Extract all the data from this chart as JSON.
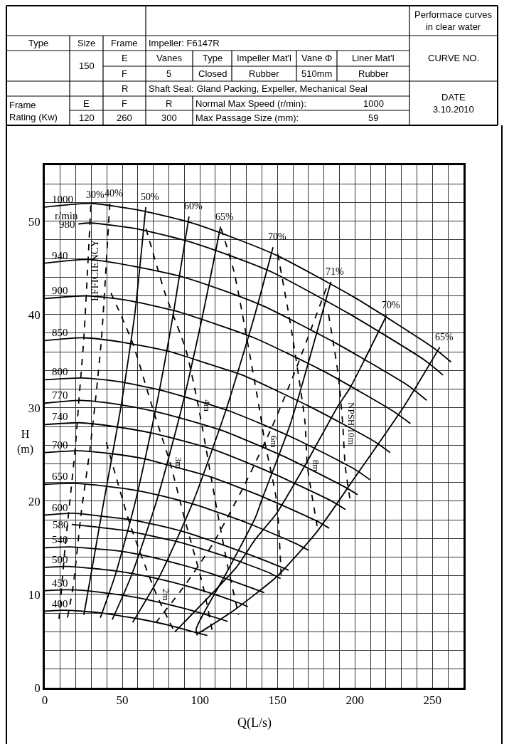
{
  "chart_data": {
    "type": "line",
    "xlabel": "Q(L/s)",
    "ylabel": "H\n(m)",
    "xlim": [
      0,
      270
    ],
    "ylim": [
      0,
      56
    ],
    "xticks": [
      0,
      {
        "value": 10,
        "label": null
      },
      {
        "value": 20,
        "label": null
      },
      {
        "value": 30,
        "label": null
      },
      {
        "value": 40,
        "label": null
      },
      50,
      {
        "value": 60,
        "label": null
      },
      {
        "value": 70,
        "label": null
      },
      {
        "value": 80,
        "label": null
      },
      {
        "value": 90,
        "label": null
      },
      100,
      {
        "value": 110,
        "label": null
      },
      {
        "value": 120,
        "label": null
      },
      {
        "value": 130,
        "label": null
      },
      {
        "value": 140,
        "label": null
      },
      150,
      {
        "value": 160,
        "label": null
      },
      {
        "value": 170,
        "label": null
      },
      {
        "value": 180,
        "label": null
      },
      {
        "value": 190,
        "label": null
      },
      200,
      {
        "value": 210,
        "label": null
      },
      {
        "value": 220,
        "label": null
      },
      {
        "value": 230,
        "label": null
      },
      {
        "value": 240,
        "label": null
      },
      250,
      {
        "value": 260,
        "label": null
      },
      {
        "value": 270,
        "label": null
      }
    ],
    "yticks": [
      0,
      {
        "value": 2,
        "label": null
      },
      {
        "value": 4,
        "label": null
      },
      {
        "value": 6,
        "label": null
      },
      {
        "value": 8,
        "label": null
      },
      10,
      {
        "value": 12,
        "label": null
      },
      {
        "value": 14,
        "label": null
      },
      {
        "value": 16,
        "label": null
      },
      {
        "value": 18,
        "label": null
      },
      20,
      {
        "value": 22,
        "label": null
      },
      {
        "value": 24,
        "label": null
      },
      {
        "value": 26,
        "label": null
      },
      {
        "value": 28,
        "label": null
      },
      30,
      {
        "value": 32,
        "label": null
      },
      {
        "value": 34,
        "label": null
      },
      {
        "value": 36,
        "label": null
      },
      {
        "value": 38,
        "label": null
      },
      40,
      {
        "value": 42,
        "label": null
      },
      {
        "value": 44,
        "label": null
      },
      {
        "value": 46,
        "label": null
      },
      {
        "value": 48,
        "label": null
      },
      50,
      {
        "value": 52,
        "label": null
      },
      {
        "value": 54,
        "label": null
      },
      {
        "value": 56,
        "label": null
      }
    ],
    "grid": true,
    "legend": false,
    "marker": "none",
    "line_style": "solid",
    "annotations": [
      "Performace curves\nin clear water",
      "Type",
      "Size",
      "Frame",
      "Impeller: F6147R",
      "E",
      "Vanes",
      "Type",
      "Impeller Mat'l",
      "Vane Φ",
      "Liner Mat'l",
      "150",
      "F",
      "5",
      "Closed",
      "Rubber",
      "510mm",
      "Rubber",
      "CURVE NO.",
      "R",
      "Shaft Seal: Gland Packing, Expeller, Mechanical Seal",
      "DATE\n3.10.2010",
      "Frame\nRating (Kw)",
      "E",
      "F",
      "R",
      "Normal Max Speed (r/min):",
      "1000",
      "120",
      "260",
      "300",
      "Max Passage Size (mm):",
      "59",
      "r/min",
      "EFFICIENCY"
    ],
    "series": [
      {
        "name": "1000",
        "color": "#000000",
        "x": [
          0,
          30,
          60,
          93,
          122,
          150,
          200,
          250,
          262
        ],
        "values": [
          51.5,
          51.9,
          51.2,
          49.9,
          48.2,
          46.3,
          41.8,
          36.5,
          34.9
        ]
      },
      {
        "name": "980",
        "color": "#000000",
        "x": [
          21.6,
          29.4,
          58.8,
          91.1,
          119.6,
          147.0,
          196.0,
          245.0,
          256.8
        ],
        "values": [
          49.7,
          49.8,
          49.2,
          47.9,
          46.3,
          44.5,
          40.1,
          35.1,
          33.5
        ]
      },
      {
        "name": "940",
        "color": "#000000",
        "x": [
          0,
          28.2,
          56.4,
          87.4,
          114.7,
          141.0,
          188.0,
          235.0,
          246.3
        ],
        "values": [
          45.5,
          45.9,
          45.2,
          44.1,
          42.6,
          40.9,
          36.9,
          32.3,
          30.8
        ]
      },
      {
        "name": "900",
        "color": "#000000",
        "x": [
          0,
          27,
          54,
          83.7,
          109.8,
          135,
          180,
          225,
          235.8
        ],
        "values": [
          41.7,
          42.0,
          41.5,
          40.4,
          39.0,
          37.5,
          33.9,
          29.6,
          28.3
        ]
      },
      {
        "name": "850",
        "color": "#000000",
        "x": [
          0,
          25.5,
          51,
          79.1,
          103.7,
          127.5,
          170,
          212.5,
          222.7
        ],
        "values": [
          37.2,
          37.5,
          37.0,
          36.1,
          34.8,
          33.5,
          30.2,
          26.4,
          25.2
        ]
      },
      {
        "name": "800",
        "color": "#000000",
        "x": [
          0,
          24,
          48,
          74.4,
          97.6,
          120,
          160,
          200,
          209.6
        ],
        "values": [
          33.0,
          33.2,
          32.8,
          31.9,
          30.8,
          29.6,
          26.8,
          23.4,
          22.3
        ]
      },
      {
        "name": "770",
        "color": "#000000",
        "x": [
          0,
          23.1,
          46.2,
          71.6,
          93.9,
          115.5,
          154,
          192.5,
          201.7
        ],
        "values": [
          30.5,
          30.8,
          30.4,
          29.6,
          28.6,
          27.5,
          24.8,
          21.6,
          20.7
        ]
      },
      {
        "name": "740",
        "color": "#000000",
        "x": [
          0,
          22.2,
          44.4,
          68.8,
          90.3,
          111,
          148,
          185,
          193.9
        ],
        "values": [
          28.2,
          28.4,
          28.0,
          27.3,
          26.4,
          25.4,
          22.9,
          20.0,
          19.1
        ]
      },
      {
        "name": "700",
        "color": "#000000",
        "x": [
          0,
          21,
          42,
          65.1,
          85.4,
          105,
          140,
          175,
          183.4
        ],
        "values": [
          25.2,
          25.4,
          25.1,
          24.5,
          23.6,
          22.7,
          20.5,
          17.9,
          17.1
        ]
      },
      {
        "name": "650",
        "color": "#000000",
        "x": [
          0,
          19.5,
          39,
          60.5,
          79.3,
          97.5,
          130,
          162.5,
          170.3
        ],
        "values": [
          21.8,
          21.9,
          21.6,
          21.1,
          20.4,
          19.6,
          17.7,
          15.4,
          14.7
        ]
      },
      {
        "name": "600",
        "color": "#000000",
        "x": [
          0,
          18,
          36,
          55.8,
          73.2,
          90,
          120,
          150,
          157.2
        ],
        "values": [
          18.5,
          18.7,
          18.4,
          18.0,
          17.4,
          16.7,
          15.0,
          13.1,
          12.6
        ]
      },
      {
        "name": "580",
        "color": "#000000",
        "x": [
          17.4,
          34.8,
          53.9,
          70.8,
          87,
          116,
          145,
          152
        ],
        "values": [
          17.5,
          17.2,
          16.8,
          16.2,
          15.6,
          14.1,
          12.3,
          11.7
        ]
      },
      {
        "name": "540",
        "color": "#000000",
        "x": [
          0,
          16.2,
          32.4,
          50.2,
          65.9,
          81,
          108,
          135,
          141.5
        ],
        "values": [
          15.0,
          15.1,
          14.9,
          14.6,
          14.1,
          13.5,
          12.2,
          10.6,
          10.2
        ]
      },
      {
        "name": "500",
        "color": "#000000",
        "x": [
          0,
          15,
          30,
          46.5,
          61,
          75,
          100,
          125,
          131
        ],
        "values": [
          12.9,
          13.0,
          12.8,
          12.5,
          12.1,
          11.6,
          10.5,
          9.1,
          8.7
        ]
      },
      {
        "name": "450",
        "color": "#000000",
        "x": [
          0,
          13.5,
          27,
          41.9,
          54.9,
          67.5,
          90,
          112.5,
          117.9
        ],
        "values": [
          10.4,
          10.5,
          10.4,
          10.1,
          9.8,
          9.4,
          8.5,
          7.4,
          7.1
        ]
      },
      {
        "name": "400",
        "color": "#000000",
        "x": [
          0,
          12,
          24,
          37.2,
          48.8,
          60,
          80,
          100,
          104.8
        ],
        "values": [
          8.2,
          8.3,
          8.2,
          8.0,
          7.7,
          7.4,
          6.7,
          5.8,
          5.6
        ]
      },
      {
        "name": "30%",
        "color": "#000000",
        "line_style": "dashed",
        "x": [
          29.7,
          25.2,
          22.1,
          19.5,
          13,
          9.2
        ],
        "values": [
          51.7,
          37.5,
          31.0,
          25.4,
          14.9,
          7.4
        ]
      },
      {
        "name": "40%",
        "color": "#000000",
        "line_style": "dashed",
        "x": [
          41.9,
          36.6,
          32.8,
          29,
          23.6,
          18.3,
          14.5
        ],
        "values": [
          51.9,
          37.5,
          31.0,
          25.4,
          18.9,
          10.9,
          7.4
        ]
      },
      {
        "name": "50%",
        "color": "#000000",
        "x": [
          65.1,
          58,
          48.8,
          38.1,
          25.2
        ],
        "values": [
          51.5,
          40,
          29.8,
          20,
          7.8
        ]
      },
      {
        "name": "60%",
        "color": "#000000",
        "x": [
          93,
          82.8,
          71.7,
          58.5,
          45.3,
          35.8
        ],
        "values": [
          50.5,
          40,
          30,
          20,
          12,
          7.5
        ]
      },
      {
        "name": "65%",
        "color": "#000000",
        "x": [
          113.3,
          101.9,
          88.3,
          72.1,
          55.8,
          43.5
        ],
        "values": [
          49.4,
          40,
          30,
          20,
          12,
          7.3
        ]
      },
      {
        "name": "70%",
        "color": "#000000",
        "x": [
          147.2,
          135.5,
          117.3,
          95.8,
          74.2,
          56.7
        ],
        "values": [
          47.2,
          40,
          30,
          20,
          12,
          7.0
        ]
      },
      {
        "name": "71%",
        "color": "#000000",
        "x": [
          184.5,
          158.6,
          140.3,
          135.7,
          117.4,
          97.6,
          98.3
        ],
        "values": [
          43.5,
          28.4,
          20.3,
          18.2,
          12.4,
          6.3,
          5.6
        ]
      },
      {
        "name": "70%",
        "color": "#000000",
        "x": [
          220.4,
          196.7,
          189.1,
          167.7,
          149.5,
          135.7,
          123.5,
          83.9
        ],
        "values": [
          39.9,
          32.1,
          30.2,
          23.8,
          18.7,
          15.9,
          12.9,
          6.0
        ]
      },
      {
        "name": "65%",
        "color": "#000000",
        "x": [
          254.7,
          231.8,
          199.8,
          175.4,
          149.5,
          122,
          108.3,
          98.8
        ],
        "values": [
          36.5,
          30.2,
          22.5,
          16.7,
          11.9,
          8.3,
          6.8,
          5.8
        ]
      },
      {
        "color": "#000000",
        "line_style": "dashed",
        "x": [
          181.5,
          160.9,
          146.4,
          128.1,
          108.3,
          90,
          71.7
        ],
        "values": [
          42.8,
          33.7,
          27.9,
          21.5,
          15.4,
          10.9,
          7.0
        ]
      },
      {
        "name": "2m",
        "color": "#000000",
        "line_style": "dashed",
        "x": [
          39.7,
          55,
          72,
          83
        ],
        "values": [
          26.3,
          17.5,
          10,
          6.2
        ]
      },
      {
        "name": "3m",
        "color": "#000000",
        "line_style": "dashed",
        "x": [
          42.7,
          56.5,
          70.2,
          80.8,
          90,
          102.2,
          108.3
        ],
        "values": [
          42.3,
          37.0,
          29.6,
          24.1,
          18.2,
          10.8,
          5.8
        ]
      },
      {
        "name": "4m",
        "color": "#000000",
        "line_style": "dashed",
        "x": [
          65.3,
          77.5,
          91,
          99,
          110,
          118,
          125
        ],
        "values": [
          49.2,
          42.3,
          36.2,
          30.2,
          20,
          13,
          7.8
        ]
      },
      {
        "name": "6m",
        "color": "#000000",
        "line_style": "dashed",
        "x": [
          113.7,
          122,
          138.8,
          141.8,
          149.5,
          152.5
        ],
        "values": [
          49.2,
          44.6,
          29.5,
          26.4,
          20,
          11.7
        ]
      },
      {
        "name": "8m",
        "color": "#000000",
        "line_style": "dashed",
        "x": [
          150.2,
          158.6,
          167.7,
          169.3,
          175.4,
          176
        ],
        "values": [
          46.5,
          38.8,
          28.6,
          23.8,
          17.5,
          16.7
        ]
      },
      {
        "name": "NPSH 10m",
        "color": "#000000",
        "line_style": "dashed",
        "x": [
          183,
          189.1,
          192.1,
          193.7,
          196.7
        ],
        "values": [
          40,
          33.7,
          28.3,
          23.8,
          20.3
        ]
      }
    ]
  }
}
